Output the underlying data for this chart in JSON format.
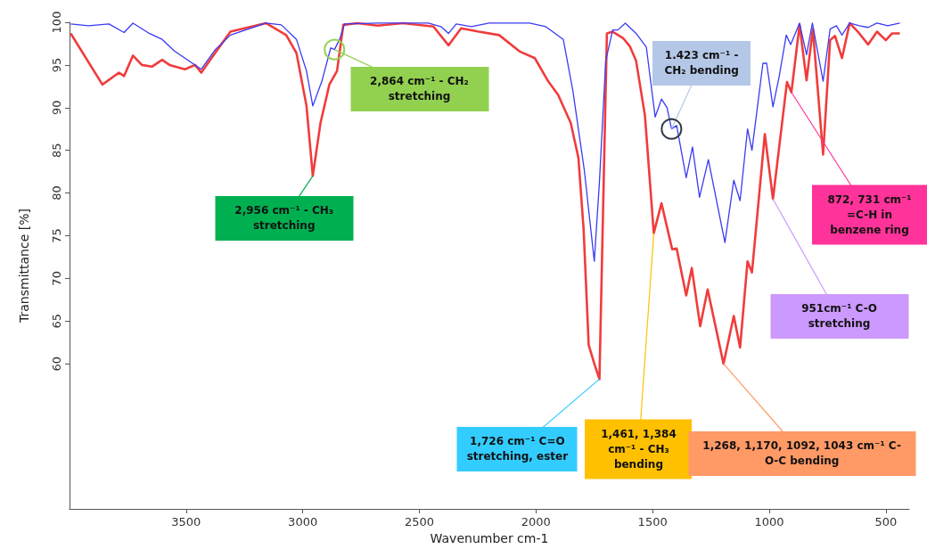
{
  "chart_data": {
    "type": "line",
    "xlabel": "Wavenumber cm-1",
    "ylabel": "Transmittance [%]",
    "xlim": [
      4000,
      400
    ],
    "ylim": [
      43,
      100
    ],
    "xticks": [
      3500,
      3000,
      2500,
      2000,
      1500,
      1000,
      500
    ],
    "yticks": [
      60,
      65,
      70,
      75,
      80,
      85,
      90,
      95,
      100
    ],
    "series": [
      {
        "color": "#f03c3c",
        "x": [
          3995,
          3859,
          3788,
          3766,
          3728,
          3690,
          3647,
          3603,
          3571,
          3505,
          3462,
          3435,
          3397,
          3310,
          3158,
          3071,
          3027,
          2984,
          2957,
          2924,
          2886,
          2853,
          2826,
          2766,
          2679,
          2571,
          2440,
          2375,
          2321,
          2245,
          2158,
          2071,
          2005,
          1948,
          1905,
          1851,
          1818,
          1796,
          1774,
          1750,
          1728,
          1696,
          1671,
          1625,
          1598,
          1571,
          1533,
          1495,
          1462,
          1416,
          1397,
          1356,
          1332,
          1296,
          1264,
          1196,
          1152,
          1125,
          1093,
          1074,
          1019,
          984,
          924,
          905,
          870,
          840,
          813,
          769,
          739,
          718,
          688,
          655,
          614,
          576,
          538,
          500,
          473,
          440
        ],
        "values": [
          98.7,
          92.7,
          94.1,
          93.7,
          96.1,
          95.0,
          94.8,
          95.6,
          95.0,
          94.5,
          95.0,
          94.1,
          95.6,
          98.9,
          99.9,
          98.5,
          96.4,
          90.2,
          82.0,
          88.2,
          92.7,
          94.3,
          99.7,
          99.9,
          99.6,
          99.9,
          99.5,
          97.3,
          99.3,
          98.9,
          98.5,
          96.6,
          95.8,
          93.1,
          91.5,
          88.2,
          84.1,
          75.8,
          62.2,
          60.0,
          58.2,
          98.7,
          98.9,
          98.1,
          97.2,
          95.5,
          89.1,
          75.3,
          78.8,
          73.4,
          73.5,
          68.0,
          71.2,
          64.4,
          68.7,
          60.0,
          65.6,
          61.9,
          72.0,
          70.7,
          86.9,
          79.3,
          93.0,
          91.8,
          99.7,
          93.2,
          99.2,
          84.5,
          97.9,
          98.4,
          95.8,
          99.9,
          98.7,
          97.4,
          98.9,
          97.9,
          98.7,
          98.7
        ]
      },
      {
        "color": "#3a3af5",
        "x": [
          3995,
          3918,
          3831,
          3766,
          3728,
          3658,
          3603,
          3549,
          3484,
          3435,
          3375,
          3310,
          3158,
          3092,
          3027,
          2984,
          2957,
          2918,
          2880,
          2864,
          2842,
          2821,
          2679,
          2462,
          2408,
          2375,
          2342,
          2277,
          2201,
          2027,
          1959,
          1883,
          1842,
          1793,
          1750,
          1728,
          1701,
          1671,
          1649,
          1617,
          1571,
          1527,
          1489,
          1462,
          1438,
          1419,
          1397,
          1356,
          1329,
          1299,
          1261,
          1190,
          1152,
          1125,
          1093,
          1074,
          1027,
          1011,
          984,
          957,
          927,
          908,
          870,
          840,
          815,
          769,
          739,
          712,
          688,
          655,
          614,
          576,
          538,
          492,
          440
        ],
        "values": [
          99.8,
          99.6,
          99.8,
          98.8,
          99.9,
          98.7,
          98.0,
          96.6,
          95.4,
          94.5,
          96.8,
          98.5,
          99.9,
          99.7,
          98.0,
          94.3,
          90.2,
          93.1,
          97.0,
          96.8,
          98.0,
          99.8,
          99.9,
          99.9,
          99.5,
          98.7,
          99.8,
          99.5,
          99.9,
          99.9,
          99.5,
          98.0,
          92.0,
          82.7,
          72.0,
          81.3,
          95.5,
          99.1,
          99.1,
          99.9,
          98.7,
          97.1,
          88.9,
          91.0,
          90.0,
          87.5,
          87.9,
          81.8,
          85.4,
          79.5,
          83.9,
          74.2,
          81.5,
          79.1,
          87.5,
          85.0,
          95.2,
          95.2,
          90.1,
          93.7,
          98.5,
          97.4,
          99.9,
          96.2,
          99.9,
          93.1,
          99.2,
          99.6,
          98.5,
          99.9,
          99.6,
          99.4,
          99.9,
          99.6,
          99.9
        ]
      }
    ],
    "annotations": [
      {
        "text": "2,864 cm⁻¹ - CH₂ stretching",
        "x": 2864,
        "y": 96.8
      },
      {
        "text": "2,956 cm⁻¹ - CH₃ stretching",
        "x": 2957,
        "y": 82.0
      },
      {
        "text": "1,726 cm⁻¹ C=O stretching, ester",
        "x": 1728,
        "y": 58.2
      },
      {
        "text": "1.423 cm⁻¹ - CH₂ bending",
        "x": 1419,
        "y": 87.5
      },
      {
        "text": "1,461, 1,384 cm⁻¹ - CH₃ bending",
        "x": 1495,
        "y": 75.3
      },
      {
        "text": "1,268, 1,170, 1092, 1043 cm⁻¹ C-O-C bending",
        "x": 1196,
        "y": 60.0
      },
      {
        "text": "951cm⁻¹ C-O stretching",
        "x": 984,
        "y": 79.3
      },
      {
        "text": "872, 731 cm⁻¹ =C-H in benzene ring",
        "x": 905,
        "y": 91.8
      }
    ]
  }
}
